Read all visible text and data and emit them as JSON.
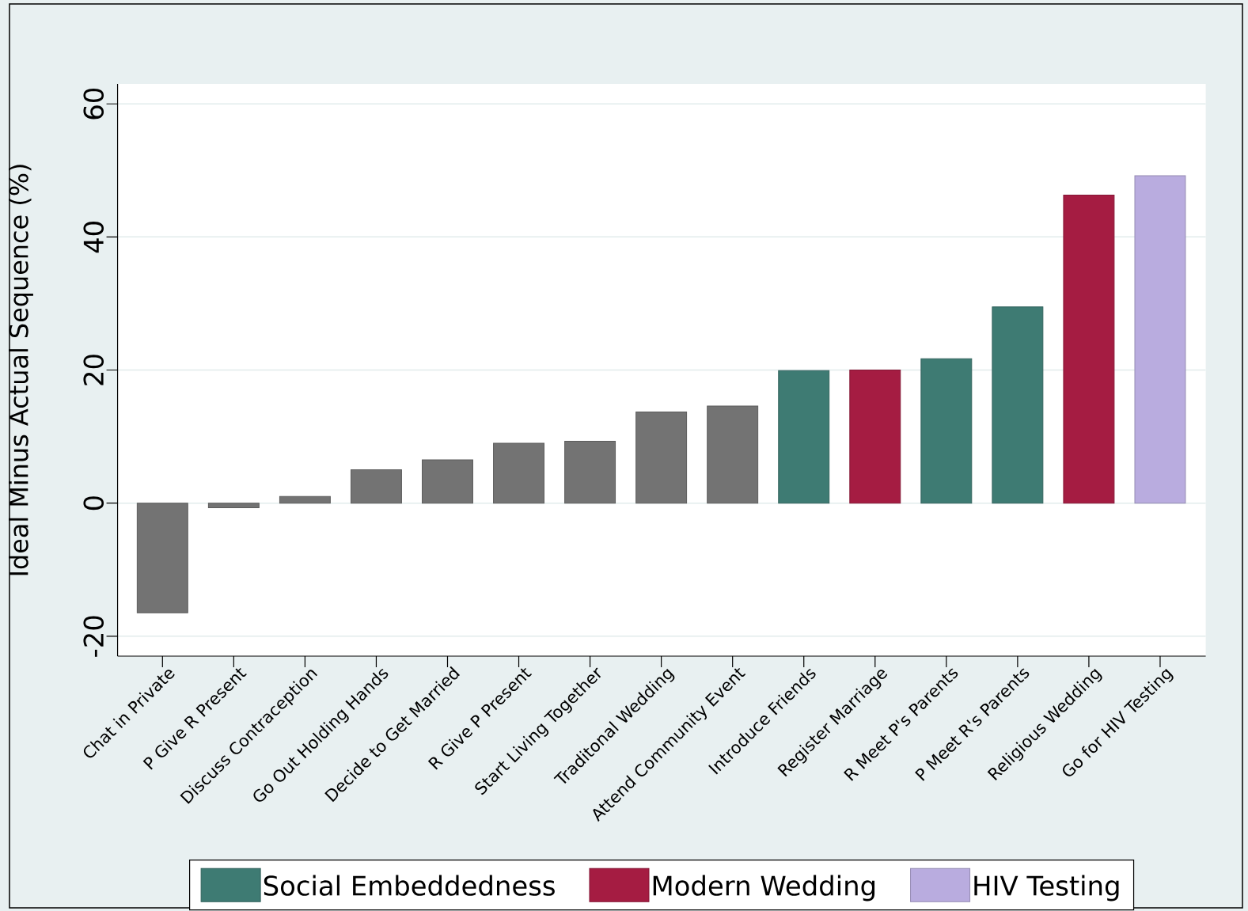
{
  "chart_data": {
    "type": "bar",
    "ylabel": "Ideal Minus Actual Sequence (%)",
    "categories": [
      "Chat in Private",
      "P Give R Present",
      "Discuss Contraception",
      "Go Out Holding Hands",
      "Decide to Get Married",
      "R Give P Present",
      "Start Living Together",
      "Traditonal Wedding",
      "Attend Community Event",
      "Introduce Friends",
      "Register Marriage",
      "R Meet P's Parents",
      "P Meet R's Parents",
      "Religious Wedding",
      "Go for HIV Testing"
    ],
    "series": [
      {
        "color": "#737373",
        "values": [
          -16.5,
          -0.7,
          1.0,
          5.0,
          6.5,
          9.0,
          9.3,
          13.7,
          14.6,
          null,
          null,
          null,
          null,
          null,
          null
        ]
      },
      {
        "name": "Social Embeddedness",
        "color": "#3e7b73",
        "values": [
          null,
          null,
          null,
          null,
          null,
          null,
          null,
          null,
          null,
          19.9,
          null,
          21.7,
          29.5,
          null,
          null
        ]
      },
      {
        "name": "Modern Wedding",
        "color": "#a51c42",
        "values": [
          null,
          null,
          null,
          null,
          null,
          null,
          null,
          null,
          null,
          null,
          20.0,
          null,
          null,
          46.3,
          null
        ]
      },
      {
        "name": "HIV Testing",
        "color": "#b9acdf",
        "values": [
          null,
          null,
          null,
          null,
          null,
          null,
          null,
          null,
          null,
          null,
          null,
          null,
          null,
          null,
          49.2
        ]
      }
    ],
    "ylim": [
      -23,
      63
    ],
    "yticks": [
      -20,
      0,
      20,
      40,
      60
    ],
    "grid": "y",
    "legend": "bottom"
  }
}
